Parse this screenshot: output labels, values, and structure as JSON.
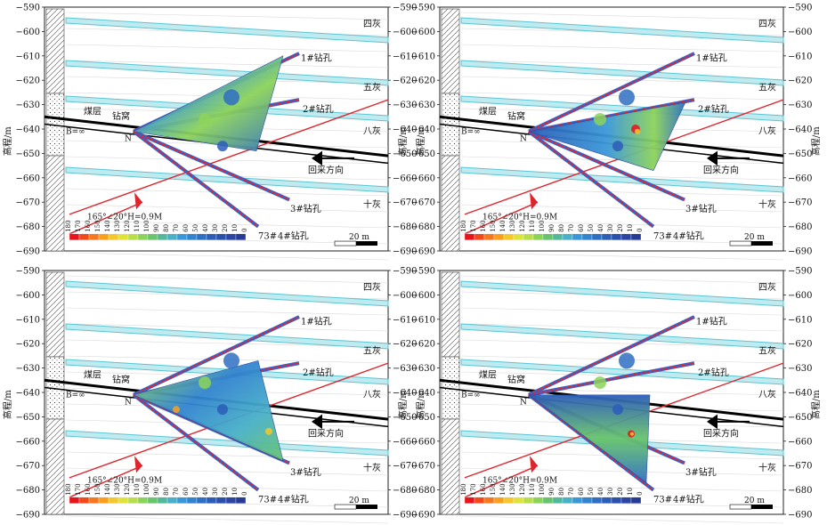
{
  "figure": {
    "y_axis_label": "高程/m",
    "y_ticks": [
      "−590",
      "−600",
      "−610",
      "−620",
      "−630",
      "−640",
      "−650",
      "−660",
      "−670",
      "−680",
      "−690"
    ],
    "legend_values": [
      "180",
      "170",
      "160",
      "150",
      "140",
      "130",
      "120",
      "110",
      "100",
      "90",
      "80",
      "70",
      "60",
      "50",
      "40",
      "30",
      "20",
      "10",
      "0"
    ],
    "legend_colors": [
      "#e8141c",
      "#f04a1a",
      "#f5781e",
      "#f8a01e",
      "#f2c82a",
      "#e0e23c",
      "#b8df4a",
      "#8cd35a",
      "#68c46c",
      "#52b89a",
      "#48b0c8",
      "#3a98d8",
      "#3184d0",
      "#2f6fc2",
      "#2c5db8",
      "#2a50ae",
      "#2a45a2",
      "#263a96"
    ],
    "scale_label": "20 m",
    "layers": {
      "sihui": "四灰",
      "wuhui": "五灰",
      "bahui": "八灰",
      "shihui": "十灰",
      "coal": "煤层",
      "drill_site": "钻窝",
      "b_inf": "B=∞",
      "n": "N"
    },
    "boreholes": {
      "h1": "1#钻孔",
      "h2": "2#钻孔",
      "h3": "3#钻孔",
      "h4": "4#钻孔",
      "h73": "73#"
    },
    "mining_direction": "回采方向",
    "fault_label": "165°∠20°H=0.9M"
  },
  "panels": [
    {
      "name": "top-left",
      "h4_reach": 0.55
    },
    {
      "name": "top-right",
      "h4_reach": 0.85
    },
    {
      "name": "bottom-left",
      "h4_reach": 0.75
    },
    {
      "name": "bottom-right",
      "h4_reach": 0.75
    }
  ]
}
